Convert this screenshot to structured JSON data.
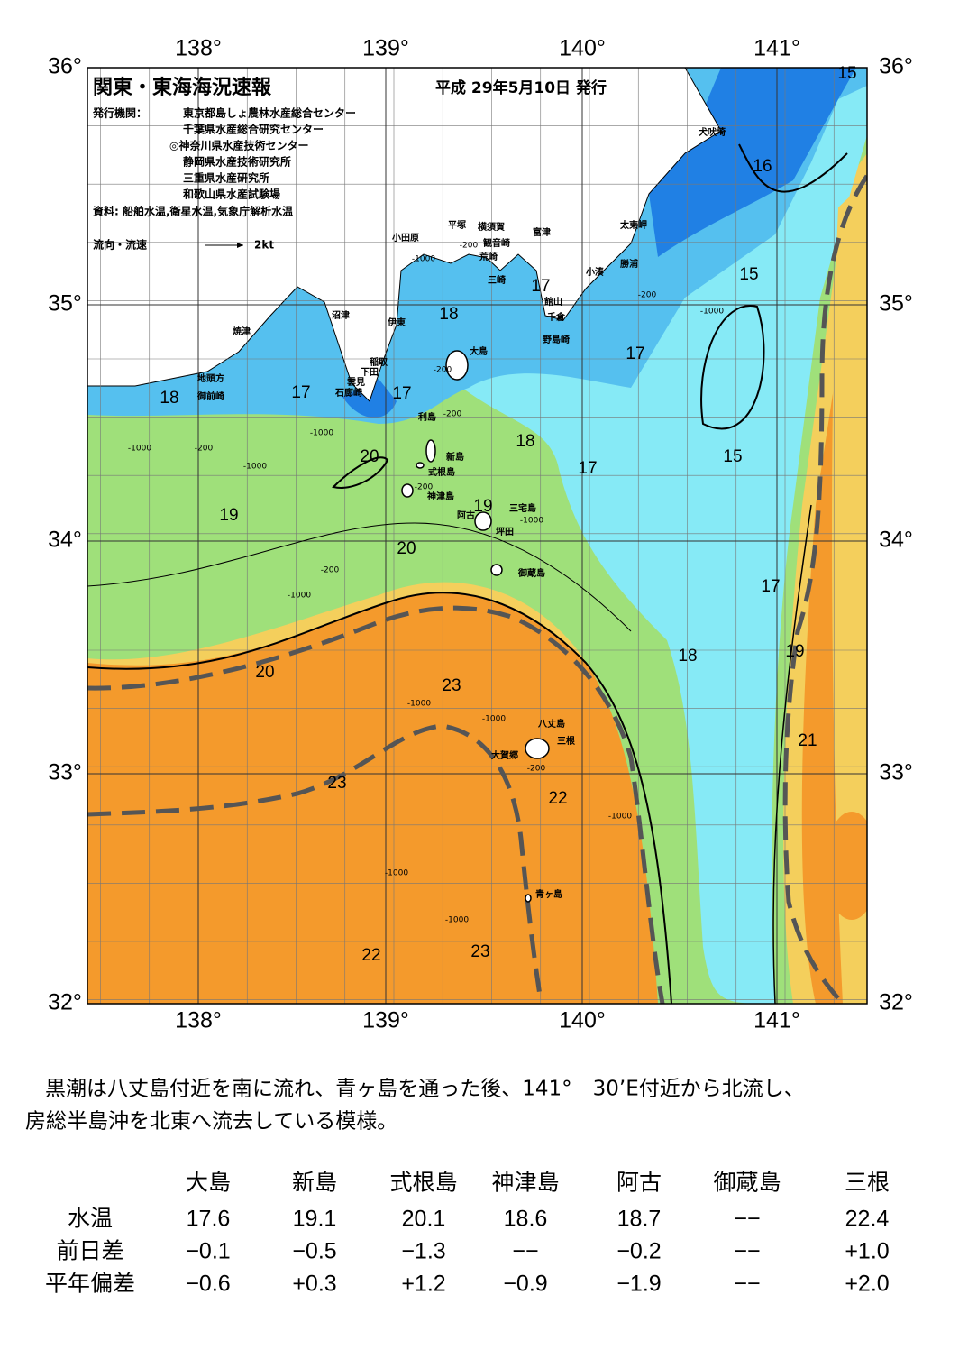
{
  "header": {
    "title": "関東・東海海況速報",
    "date": "平成 29年5月10日 発行"
  },
  "publisher": {
    "label": "発行機関：",
    "organizations": [
      "東京都島しょ農林水産総合センター",
      "千葉県水産総合研究センター",
      "◎神奈川県水産技術センター",
      "静岡県水産技術研究所",
      "三重県水産研究所",
      "和歌山県水産試験場"
    ],
    "sources": "資料: 船舶水温,衛星水温,気象庁解析水温"
  },
  "legend": {
    "label": "流向・流速",
    "speed": "2kt"
  },
  "axes": {
    "lon_labels": [
      "138°",
      "139°",
      "140°",
      "141°"
    ],
    "lat_labels": [
      "36°",
      "35°",
      "34°",
      "33°",
      "32°"
    ]
  },
  "place_names": [
    "犬吠埼",
    "太東岬",
    "勝浦",
    "小湊",
    "富津",
    "横須賀",
    "観音崎",
    "平塚",
    "小田原",
    "荒崎",
    "三崎",
    "館山",
    "千倉",
    "野島崎",
    "沼津",
    "伊東",
    "焼津",
    "大島",
    "稲取",
    "下田",
    "雲見",
    "石廊崎",
    "地頭方",
    "御前崎",
    "利島",
    "新島",
    "式根島",
    "神津島",
    "三宅島",
    "阿古",
    "坪田",
    "御蔵島",
    "八丈島",
    "三根",
    "大賀郷",
    "青ヶ島"
  ],
  "contour_labels": [
    "15",
    "16",
    "15",
    "17",
    "18",
    "17",
    "18",
    "17",
    "17",
    "18",
    "20",
    "17",
    "15",
    "19",
    "19",
    "20",
    "17",
    "18",
    "19",
    "20",
    "23",
    "21",
    "23",
    "22",
    "22",
    "23"
  ],
  "depth_labels": [
    "-200",
    "-200",
    "-200",
    "-200",
    "-200",
    "-200",
    "-200",
    "-200",
    "-1000",
    "-1000",
    "-1000",
    "-1000",
    "-1000",
    "-1000",
    "-1000",
    "-1000",
    "-1000",
    "-1000",
    "-1000",
    "-1000"
  ],
  "summary": [
    "黒潮は八丈島付近を南に流れ、青ヶ島を通った後、141°　30’E付近から北流し、",
    "房総半島沖を北東へ流去している模様。"
  ],
  "table": {
    "columns": [
      "大島",
      "新島",
      "式根島",
      "神津島",
      "阿古",
      "御蔵島",
      "三根"
    ],
    "rows": [
      {
        "label": "水温",
        "values": [
          "17.6",
          "19.1",
          "20.1",
          "18.6",
          "18.7",
          "−−",
          "22.4"
        ]
      },
      {
        "label": "前日差",
        "values": [
          "−0.1",
          "−0.5",
          "−1.3",
          "−−",
          "−0.2",
          "−−",
          "+1.0"
        ]
      },
      {
        "label": "平年偏差",
        "values": [
          "−0.6",
          "+0.3",
          "+1.2",
          "−0.9",
          "−1.9",
          "−−",
          "+2.0"
        ]
      }
    ]
  }
}
